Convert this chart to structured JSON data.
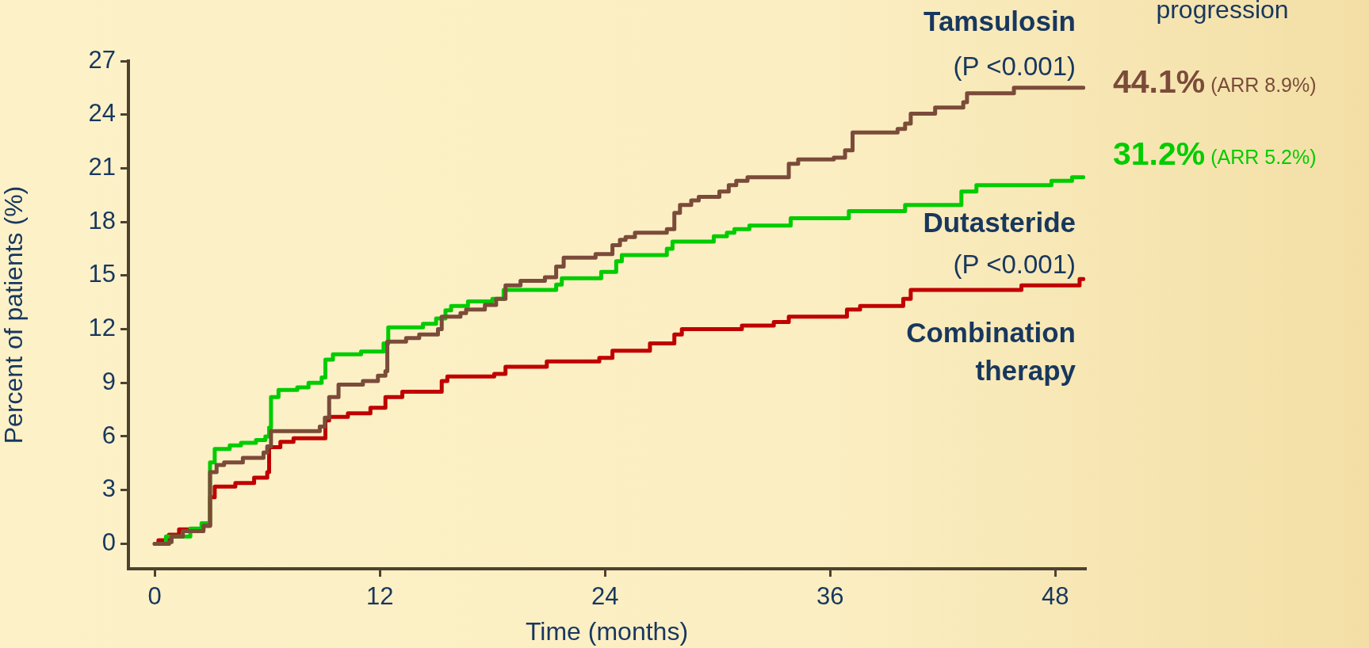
{
  "chart_data": {
    "type": "step",
    "xlabel": "Time (months)",
    "ylabel": "Percent of patients (%)",
    "xlim": [
      -1.4,
      49.6
    ],
    "xticks": [
      0,
      12,
      24,
      36,
      48
    ],
    "ylim": [
      -1.4,
      27
    ],
    "yticks": [
      0,
      3,
      6,
      9,
      12,
      15,
      18,
      21,
      24,
      27
    ],
    "grid": false,
    "legend": false,
    "marker": "none",
    "line_style": "solid",
    "annotations": [
      "progression",
      "44.1% (ARR 8.9%)",
      "31.2% (ARR 5.2%)",
      "(P <0.001)",
      "(P <0.001)"
    ],
    "series": [
      {
        "name": "Tamsulosin",
        "color": "#7b4b3a",
        "x": [
          0,
          0.77,
          0.9,
          1.5,
          2.6,
          2.95,
          3.3,
          3.7,
          4.7,
          5.8,
          6.0,
          6.2,
          8.8,
          9.07,
          9.3,
          9.8,
          11.1,
          11.9,
          12.3,
          12.4,
          13.4,
          14.1,
          15.1,
          15.3,
          16.3,
          16.6,
          17.6,
          18.2,
          18.7,
          19.5,
          20.8,
          21.4,
          21.8,
          23.5,
          24.4,
          24.8,
          25.1,
          25.6,
          27.3,
          27.7,
          28.0,
          28.6,
          29.0,
          30.1,
          30.6,
          31.0,
          31.6,
          33.8,
          34.3,
          36.2,
          36.8,
          37.2,
          39.6,
          40.0,
          40.3,
          41.6,
          43.1,
          43.3,
          45.8,
          49.5
        ],
        "values": [
          0,
          0.1,
          0.4,
          0.7,
          1.0,
          4.0,
          4.4,
          4.55,
          4.8,
          5.1,
          5.45,
          6.3,
          6.55,
          7.05,
          8.2,
          8.9,
          9.1,
          9.4,
          9.65,
          11.3,
          11.5,
          11.7,
          12.0,
          12.7,
          12.9,
          13.1,
          13.35,
          13.7,
          14.45,
          14.7,
          14.9,
          15.5,
          16.0,
          16.2,
          16.7,
          17.0,
          17.15,
          17.4,
          17.6,
          18.5,
          18.95,
          19.2,
          19.4,
          19.7,
          20.05,
          20.3,
          20.5,
          21.25,
          21.5,
          21.6,
          22.0,
          23.0,
          23.2,
          23.5,
          24.05,
          24.4,
          24.7,
          25.2,
          25.5,
          25.5
        ]
      },
      {
        "name": "Dutasteride",
        "color": "#00cc00",
        "x": [
          0,
          0.6,
          1.9,
          2.5,
          2.95,
          3.2,
          4.0,
          4.6,
          5.4,
          5.9,
          6.1,
          6.2,
          6.6,
          7.6,
          8.2,
          8.9,
          9.1,
          9.5,
          11.0,
          12.2,
          12.45,
          14.3,
          15.0,
          15.5,
          15.8,
          16.7,
          18.0,
          18.6,
          21.4,
          21.7,
          23.8,
          24.6,
          24.9,
          27.3,
          27.6,
          29.8,
          30.5,
          30.9,
          31.7,
          33.9,
          37.0,
          40.0,
          43.0,
          43.8,
          47.8,
          48.9,
          49.5
        ],
        "values": [
          0,
          0.4,
          0.85,
          1.15,
          4.55,
          5.3,
          5.5,
          5.65,
          5.8,
          6.0,
          6.5,
          8.2,
          8.6,
          8.75,
          9.0,
          9.3,
          10.3,
          10.6,
          10.75,
          11.2,
          12.1,
          12.3,
          12.6,
          13.05,
          13.3,
          13.55,
          13.7,
          14.2,
          14.5,
          14.85,
          15.2,
          15.8,
          16.15,
          16.5,
          16.9,
          17.2,
          17.4,
          17.6,
          17.8,
          18.2,
          18.6,
          18.95,
          19.7,
          20.05,
          20.3,
          20.5,
          20.5
        ]
      },
      {
        "name": "Combination therapy",
        "color": "#c00000",
        "x": [
          0,
          0.2,
          0.76,
          1.3,
          2.6,
          2.95,
          3.2,
          4.3,
          5.3,
          6.0,
          6.1,
          6.7,
          7.4,
          9.1,
          9.3,
          10.3,
          11.5,
          12.3,
          13.2,
          15.3,
          15.6,
          18.1,
          18.7,
          20.9,
          23.7,
          24.4,
          26.4,
          27.7,
          28.1,
          31.3,
          33.0,
          33.8,
          36.9,
          37.6,
          39.9,
          40.3,
          46.2,
          49.3,
          49.5
        ],
        "values": [
          0,
          0.2,
          0.5,
          0.8,
          1.0,
          2.6,
          3.2,
          3.4,
          3.7,
          4.0,
          5.4,
          5.7,
          5.9,
          6.9,
          7.1,
          7.3,
          7.6,
          8.2,
          8.5,
          9.1,
          9.35,
          9.5,
          9.9,
          10.2,
          10.4,
          10.8,
          11.2,
          11.7,
          12.0,
          12.2,
          12.4,
          12.7,
          13.1,
          13.3,
          13.7,
          14.2,
          14.45,
          14.8,
          14.8
        ]
      }
    ]
  }
}
